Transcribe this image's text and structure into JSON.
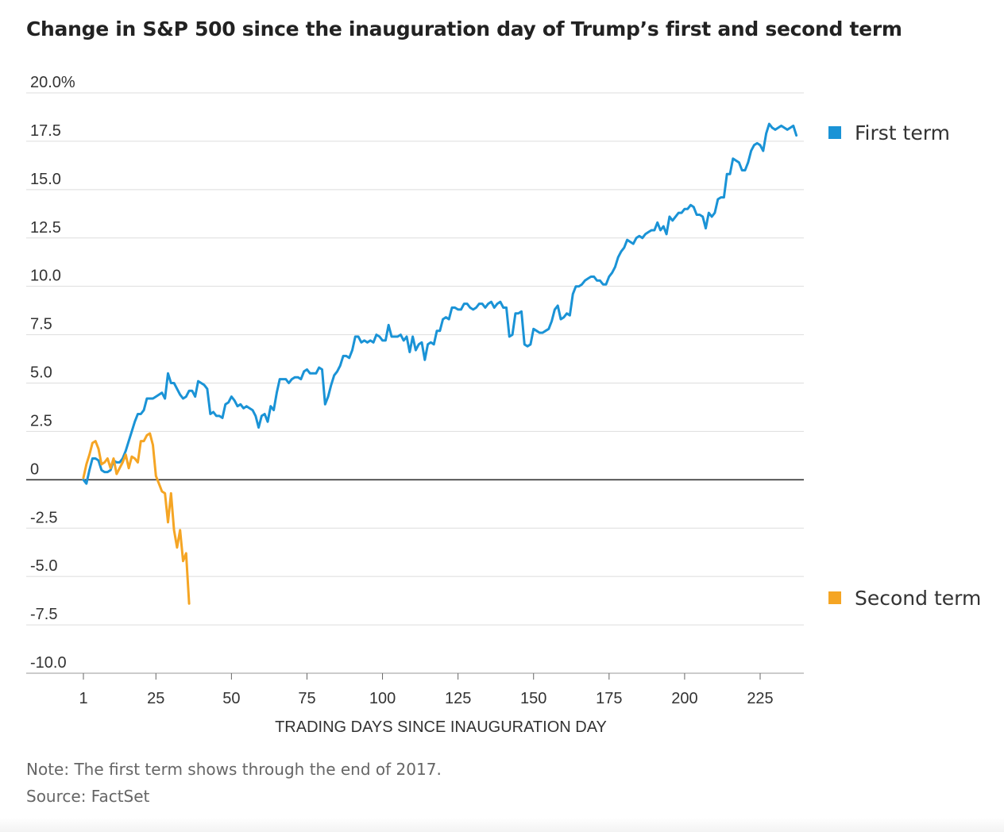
{
  "title": "Change in S&P 500 since the inauguration day of Trump’s first and second term",
  "note": "Note: The first term shows through the end of 2017.",
  "source": "Source: FactSet",
  "chart_data": {
    "type": "line",
    "title": "Change in S&P 500 since the inauguration day of Trump’s first and second term",
    "xlabel": "TRADING DAYS SINCE INAUGURATION DAY",
    "ylabel": "",
    "xlim": [
      1,
      240
    ],
    "ylim": [
      -10,
      20
    ],
    "x_ticks": [
      1,
      25,
      50,
      75,
      100,
      125,
      150,
      175,
      200,
      225
    ],
    "y_ticks": [
      20,
      17.5,
      15,
      12.5,
      10,
      7.5,
      5,
      2.5,
      0,
      -2.5,
      -5,
      -7.5,
      -10
    ],
    "y_tick_labels": [
      "20.0%",
      "17.5",
      "15.0",
      "12.5",
      "10.0",
      "7.5",
      "5.0",
      "2.5",
      "0",
      "-2.5",
      "-5.0",
      "-7.5",
      "-10.0"
    ],
    "grid": true,
    "legend_position": "right",
    "series": [
      {
        "name": "First term",
        "color": "#1a93d6",
        "points": [
          [
            1,
            0
          ],
          [
            2,
            -0.2
          ],
          [
            3,
            0.5
          ],
          [
            4,
            1.1
          ],
          [
            5,
            1.1
          ],
          [
            6,
            1.0
          ],
          [
            7,
            0.5
          ],
          [
            8,
            0.4
          ],
          [
            9,
            0.4
          ],
          [
            10,
            0.5
          ],
          [
            11,
            1.0
          ],
          [
            12,
            0.9
          ],
          [
            13,
            0.9
          ],
          [
            14,
            1.1
          ],
          [
            15,
            1.5
          ],
          [
            16,
            2.0
          ],
          [
            17,
            2.5
          ],
          [
            18,
            3.0
          ],
          [
            19,
            3.4
          ],
          [
            20,
            3.4
          ],
          [
            21,
            3.6
          ],
          [
            22,
            4.2
          ],
          [
            23,
            4.2
          ],
          [
            24,
            4.2
          ],
          [
            25,
            4.3
          ],
          [
            26,
            4.4
          ],
          [
            27,
            4.5
          ],
          [
            28,
            4.2
          ],
          [
            29,
            5.5
          ],
          [
            30,
            5.0
          ],
          [
            31,
            5.0
          ],
          [
            32,
            4.7
          ],
          [
            33,
            4.4
          ],
          [
            34,
            4.2
          ],
          [
            35,
            4.3
          ],
          [
            36,
            4.6
          ],
          [
            37,
            4.6
          ],
          [
            38,
            4.3
          ],
          [
            39,
            5.1
          ],
          [
            40,
            5.0
          ],
          [
            41,
            4.9
          ],
          [
            42,
            4.7
          ],
          [
            43,
            3.4
          ],
          [
            44,
            3.5
          ],
          [
            45,
            3.3
          ],
          [
            46,
            3.3
          ],
          [
            47,
            3.2
          ],
          [
            48,
            3.9
          ],
          [
            49,
            4.0
          ],
          [
            50,
            4.3
          ],
          [
            51,
            4.1
          ],
          [
            52,
            3.8
          ],
          [
            53,
            3.9
          ],
          [
            54,
            3.7
          ],
          [
            55,
            3.8
          ],
          [
            56,
            3.7
          ],
          [
            57,
            3.6
          ],
          [
            58,
            3.3
          ],
          [
            59,
            2.7
          ],
          [
            60,
            3.3
          ],
          [
            61,
            3.4
          ],
          [
            62,
            3.0
          ],
          [
            63,
            3.8
          ],
          [
            64,
            3.6
          ],
          [
            65,
            4.5
          ],
          [
            66,
            5.2
          ],
          [
            67,
            5.2
          ],
          [
            68,
            5.2
          ],
          [
            69,
            5.0
          ],
          [
            70,
            5.2
          ],
          [
            71,
            5.3
          ],
          [
            72,
            5.3
          ],
          [
            73,
            5.2
          ],
          [
            74,
            5.6
          ],
          [
            75,
            5.7
          ],
          [
            76,
            5.5
          ],
          [
            77,
            5.5
          ],
          [
            78,
            5.5
          ],
          [
            79,
            5.8
          ],
          [
            80,
            5.7
          ],
          [
            81,
            3.9
          ],
          [
            82,
            4.3
          ],
          [
            83,
            4.9
          ],
          [
            84,
            5.4
          ],
          [
            85,
            5.6
          ],
          [
            86,
            5.9
          ],
          [
            87,
            6.4
          ],
          [
            88,
            6.4
          ],
          [
            89,
            6.3
          ],
          [
            90,
            6.7
          ],
          [
            91,
            7.4
          ],
          [
            92,
            7.4
          ],
          [
            93,
            7.1
          ],
          [
            94,
            7.2
          ],
          [
            95,
            7.1
          ],
          [
            96,
            7.2
          ],
          [
            97,
            7.1
          ],
          [
            98,
            7.5
          ],
          [
            99,
            7.4
          ],
          [
            100,
            7.2
          ],
          [
            101,
            7.2
          ],
          [
            102,
            8.0
          ],
          [
            103,
            7.4
          ],
          [
            104,
            7.4
          ],
          [
            105,
            7.4
          ],
          [
            106,
            7.5
          ],
          [
            107,
            7.2
          ],
          [
            108,
            7.4
          ],
          [
            109,
            6.6
          ],
          [
            110,
            7.4
          ],
          [
            111,
            6.7
          ],
          [
            112,
            7.0
          ],
          [
            113,
            7.1
          ],
          [
            114,
            6.2
          ],
          [
            115,
            7.0
          ],
          [
            116,
            7.1
          ],
          [
            117,
            7.0
          ],
          [
            118,
            7.7
          ],
          [
            119,
            7.7
          ],
          [
            120,
            8.3
          ],
          [
            121,
            8.4
          ],
          [
            122,
            8.3
          ],
          [
            123,
            8.9
          ],
          [
            124,
            8.9
          ],
          [
            125,
            8.8
          ],
          [
            126,
            8.8
          ],
          [
            127,
            9.1
          ],
          [
            128,
            9.1
          ],
          [
            129,
            8.9
          ],
          [
            130,
            8.8
          ],
          [
            131,
            8.9
          ],
          [
            132,
            9.1
          ],
          [
            133,
            9.1
          ],
          [
            134,
            8.9
          ],
          [
            135,
            9.1
          ],
          [
            136,
            9.2
          ],
          [
            137,
            8.9
          ],
          [
            138,
            9.1
          ],
          [
            139,
            9.2
          ],
          [
            140,
            8.9
          ],
          [
            141,
            8.9
          ],
          [
            142,
            7.4
          ],
          [
            143,
            7.5
          ],
          [
            144,
            8.6
          ],
          [
            145,
            8.6
          ],
          [
            146,
            8.7
          ],
          [
            147,
            7.0
          ],
          [
            148,
            6.9
          ],
          [
            149,
            7.0
          ],
          [
            150,
            7.8
          ],
          [
            151,
            7.7
          ],
          [
            152,
            7.6
          ],
          [
            153,
            7.6
          ],
          [
            154,
            7.7
          ],
          [
            155,
            7.8
          ],
          [
            156,
            8.2
          ],
          [
            157,
            8.8
          ],
          [
            158,
            9.0
          ],
          [
            159,
            8.3
          ],
          [
            160,
            8.4
          ],
          [
            161,
            8.6
          ],
          [
            162,
            8.5
          ],
          [
            163,
            9.6
          ],
          [
            164,
            10.0
          ],
          [
            165,
            10.0
          ],
          [
            166,
            10.1
          ],
          [
            167,
            10.3
          ],
          [
            168,
            10.4
          ],
          [
            169,
            10.5
          ],
          [
            170,
            10.5
          ],
          [
            171,
            10.3
          ],
          [
            172,
            10.3
          ],
          [
            173,
            10.1
          ],
          [
            174,
            10.1
          ],
          [
            175,
            10.5
          ],
          [
            176,
            10.7
          ],
          [
            177,
            11.0
          ],
          [
            178,
            11.5
          ],
          [
            179,
            11.8
          ],
          [
            180,
            12.0
          ],
          [
            181,
            12.4
          ],
          [
            182,
            12.3
          ],
          [
            183,
            12.2
          ],
          [
            184,
            12.5
          ],
          [
            185,
            12.6
          ],
          [
            186,
            12.5
          ],
          [
            187,
            12.7
          ],
          [
            188,
            12.8
          ],
          [
            189,
            12.9
          ],
          [
            190,
            12.9
          ],
          [
            191,
            13.3
          ],
          [
            192,
            12.9
          ],
          [
            193,
            13.1
          ],
          [
            194,
            12.7
          ],
          [
            195,
            13.6
          ],
          [
            196,
            13.4
          ],
          [
            197,
            13.6
          ],
          [
            198,
            13.8
          ],
          [
            199,
            13.8
          ],
          [
            200,
            14.0
          ],
          [
            201,
            14.0
          ],
          [
            202,
            14.2
          ],
          [
            203,
            14.1
          ],
          [
            204,
            13.7
          ],
          [
            205,
            13.7
          ],
          [
            206,
            13.6
          ],
          [
            207,
            13.0
          ],
          [
            208,
            13.8
          ],
          [
            209,
            13.6
          ],
          [
            210,
            13.8
          ],
          [
            211,
            14.5
          ],
          [
            212,
            14.6
          ],
          [
            213,
            14.6
          ],
          [
            214,
            15.8
          ],
          [
            215,
            15.8
          ],
          [
            216,
            16.6
          ],
          [
            217,
            16.5
          ],
          [
            218,
            16.4
          ],
          [
            219,
            16.0
          ],
          [
            220,
            16.0
          ],
          [
            221,
            16.4
          ],
          [
            222,
            17.0
          ],
          [
            223,
            17.3
          ],
          [
            224,
            17.4
          ],
          [
            225,
            17.3
          ],
          [
            226,
            17.0
          ],
          [
            227,
            17.9
          ],
          [
            228,
            18.4
          ],
          [
            229,
            18.2
          ],
          [
            230,
            18.1
          ],
          [
            231,
            18.2
          ],
          [
            232,
            18.3
          ],
          [
            233,
            18.2
          ],
          [
            234,
            18.1
          ],
          [
            235,
            18.2
          ],
          [
            236,
            18.3
          ],
          [
            237,
            17.8
          ]
        ]
      },
      {
        "name": "Second term",
        "color": "#f5a524",
        "points": [
          [
            1,
            0.1
          ],
          [
            2,
            0.8
          ],
          [
            3,
            1.3
          ],
          [
            4,
            1.9
          ],
          [
            5,
            2.0
          ],
          [
            6,
            1.6
          ],
          [
            7,
            0.8
          ],
          [
            8,
            0.9
          ],
          [
            9,
            1.1
          ],
          [
            10,
            0.6
          ],
          [
            11,
            1.1
          ],
          [
            12,
            0.3
          ],
          [
            13,
            0.6
          ],
          [
            14,
            0.9
          ],
          [
            15,
            1.3
          ],
          [
            16,
            0.6
          ],
          [
            17,
            1.2
          ],
          [
            18,
            1.1
          ],
          [
            19,
            0.9
          ],
          [
            20,
            2.0
          ],
          [
            21,
            2.0
          ],
          [
            22,
            2.3
          ],
          [
            23,
            2.4
          ],
          [
            24,
            1.8
          ],
          [
            25,
            0.2
          ],
          [
            26,
            -0.2
          ],
          [
            27,
            -0.6
          ],
          [
            28,
            -0.7
          ],
          [
            29,
            -2.2
          ],
          [
            30,
            -0.7
          ],
          [
            31,
            -2.6
          ],
          [
            32,
            -3.5
          ],
          [
            33,
            -2.6
          ],
          [
            34,
            -4.2
          ],
          [
            35,
            -3.8
          ],
          [
            36,
            -6.4
          ]
        ]
      }
    ]
  }
}
